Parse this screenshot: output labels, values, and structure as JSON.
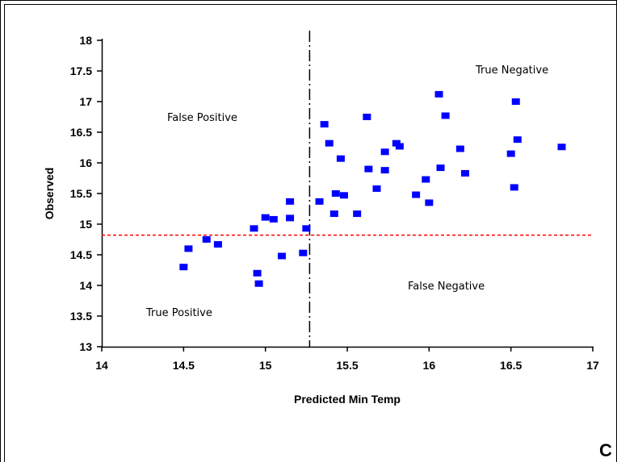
{
  "chart_data": {
    "type": "scatter",
    "xlabel": "Predicted Min Temp",
    "ylabel": "Observed",
    "xlim": [
      14,
      17
    ],
    "ylim": [
      13,
      18
    ],
    "x_ticks": [
      "14",
      "14.5",
      "15",
      "15.5",
      "16",
      "16.5",
      "17"
    ],
    "y_ticks": [
      "13",
      "13.5",
      "14",
      "14.5",
      "15",
      "15.5",
      "16",
      "16.5",
      "17",
      "17.5",
      "18"
    ],
    "vertical_threshold_x": 15.27,
    "horizontal_threshold_y": 14.82,
    "quadrant_labels": {
      "top_left": "False Positive",
      "top_right": "True Negative",
      "bottom_left": "True Positive",
      "bottom_right": "False Negative"
    },
    "points": [
      [
        14.5,
        14.3
      ],
      [
        14.53,
        14.6
      ],
      [
        14.64,
        14.75
      ],
      [
        14.71,
        14.67
      ],
      [
        14.95,
        14.2
      ],
      [
        14.96,
        14.03
      ],
      [
        14.93,
        14.93
      ],
      [
        15.0,
        15.11
      ],
      [
        15.05,
        15.08
      ],
      [
        15.1,
        14.48
      ],
      [
        15.15,
        15.37
      ],
      [
        15.15,
        15.1
      ],
      [
        15.23,
        14.53
      ],
      [
        15.25,
        14.93
      ],
      [
        15.33,
        15.37
      ],
      [
        15.36,
        16.63
      ],
      [
        15.39,
        16.32
      ],
      [
        15.42,
        15.17
      ],
      [
        15.43,
        15.5
      ],
      [
        15.46,
        16.07
      ],
      [
        15.48,
        15.47
      ],
      [
        15.56,
        15.17
      ],
      [
        15.62,
        16.75
      ],
      [
        15.63,
        15.9
      ],
      [
        15.68,
        15.58
      ],
      [
        15.73,
        16.18
      ],
      [
        15.73,
        15.88
      ],
      [
        15.8,
        16.32
      ],
      [
        15.82,
        16.27
      ],
      [
        15.92,
        15.48
      ],
      [
        15.98,
        15.73
      ],
      [
        16.0,
        15.35
      ],
      [
        16.06,
        17.12
      ],
      [
        16.07,
        15.92
      ],
      [
        16.1,
        16.77
      ],
      [
        16.19,
        16.23
      ],
      [
        16.22,
        15.83
      ],
      [
        16.5,
        16.15
      ],
      [
        16.52,
        15.6
      ],
      [
        16.53,
        17.0
      ],
      [
        16.54,
        16.38
      ],
      [
        16.81,
        16.26
      ]
    ],
    "point_color": "#0000FF",
    "threshold_h_color": "#FF0000",
    "grid": false
  },
  "corner_label": "C"
}
